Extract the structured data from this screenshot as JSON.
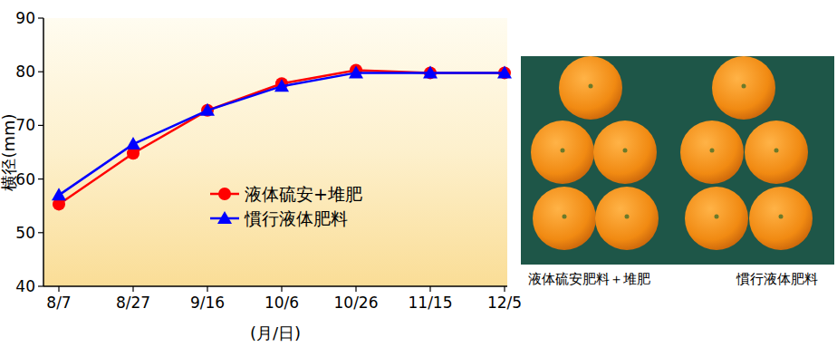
{
  "chart_data": {
    "type": "line",
    "x_label": "(月/日)",
    "y_label": "横径(mm)",
    "categories": [
      "8/7",
      "8/27",
      "9/16",
      "10/6",
      "10/26",
      "11/15",
      "12/5"
    ],
    "series": [
      {
        "name": "液体硫安+堆肥",
        "color": "#ff0000",
        "marker": "circle",
        "values": [
          55.3,
          64.8,
          72.8,
          77.8,
          80.3,
          79.8,
          79.8
        ]
      },
      {
        "name": "慣行液体肥料",
        "color": "#0000ff",
        "marker": "triangle",
        "values": [
          57.0,
          66.5,
          72.8,
          77.3,
          79.8,
          79.8,
          79.8
        ]
      }
    ],
    "ylim": [
      40,
      90
    ],
    "yticks": [
      40,
      50,
      60,
      70,
      80,
      90
    ],
    "grid": false,
    "legend": "center"
  },
  "images": {
    "captions": [
      "液体硫安肥料＋堆肥",
      "慣行液体肥料"
    ]
  }
}
